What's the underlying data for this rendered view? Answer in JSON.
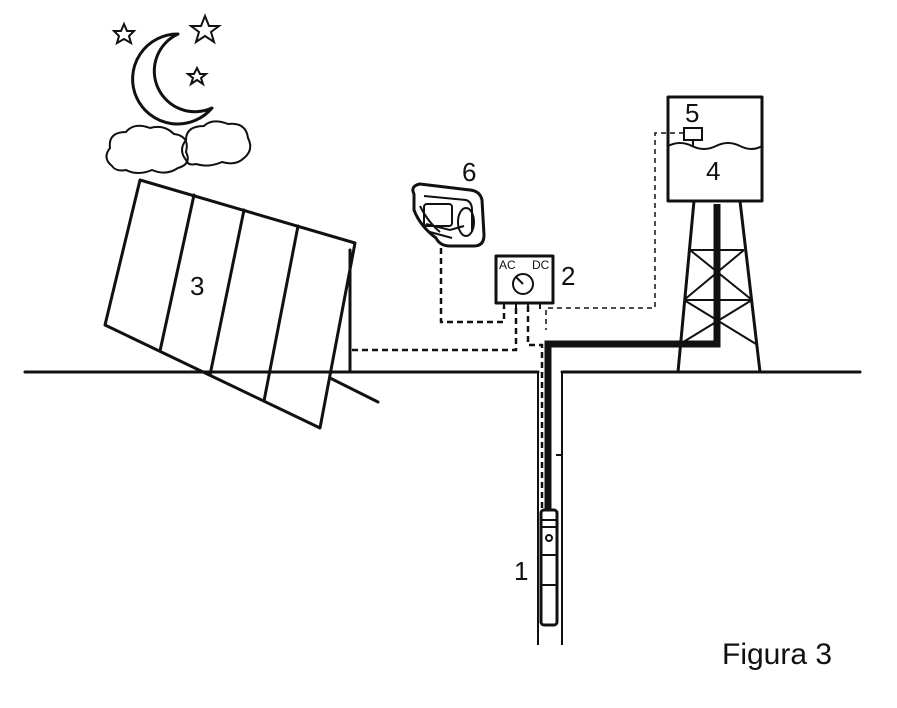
{
  "labels": {
    "pump": "1",
    "controller": "2",
    "solar_panel": "3",
    "water_tank": "4",
    "level_switch": "5",
    "generator": "6"
  },
  "controller": {
    "ac_label": "AC",
    "dc_label": "DC"
  },
  "caption": "Figura 3"
}
